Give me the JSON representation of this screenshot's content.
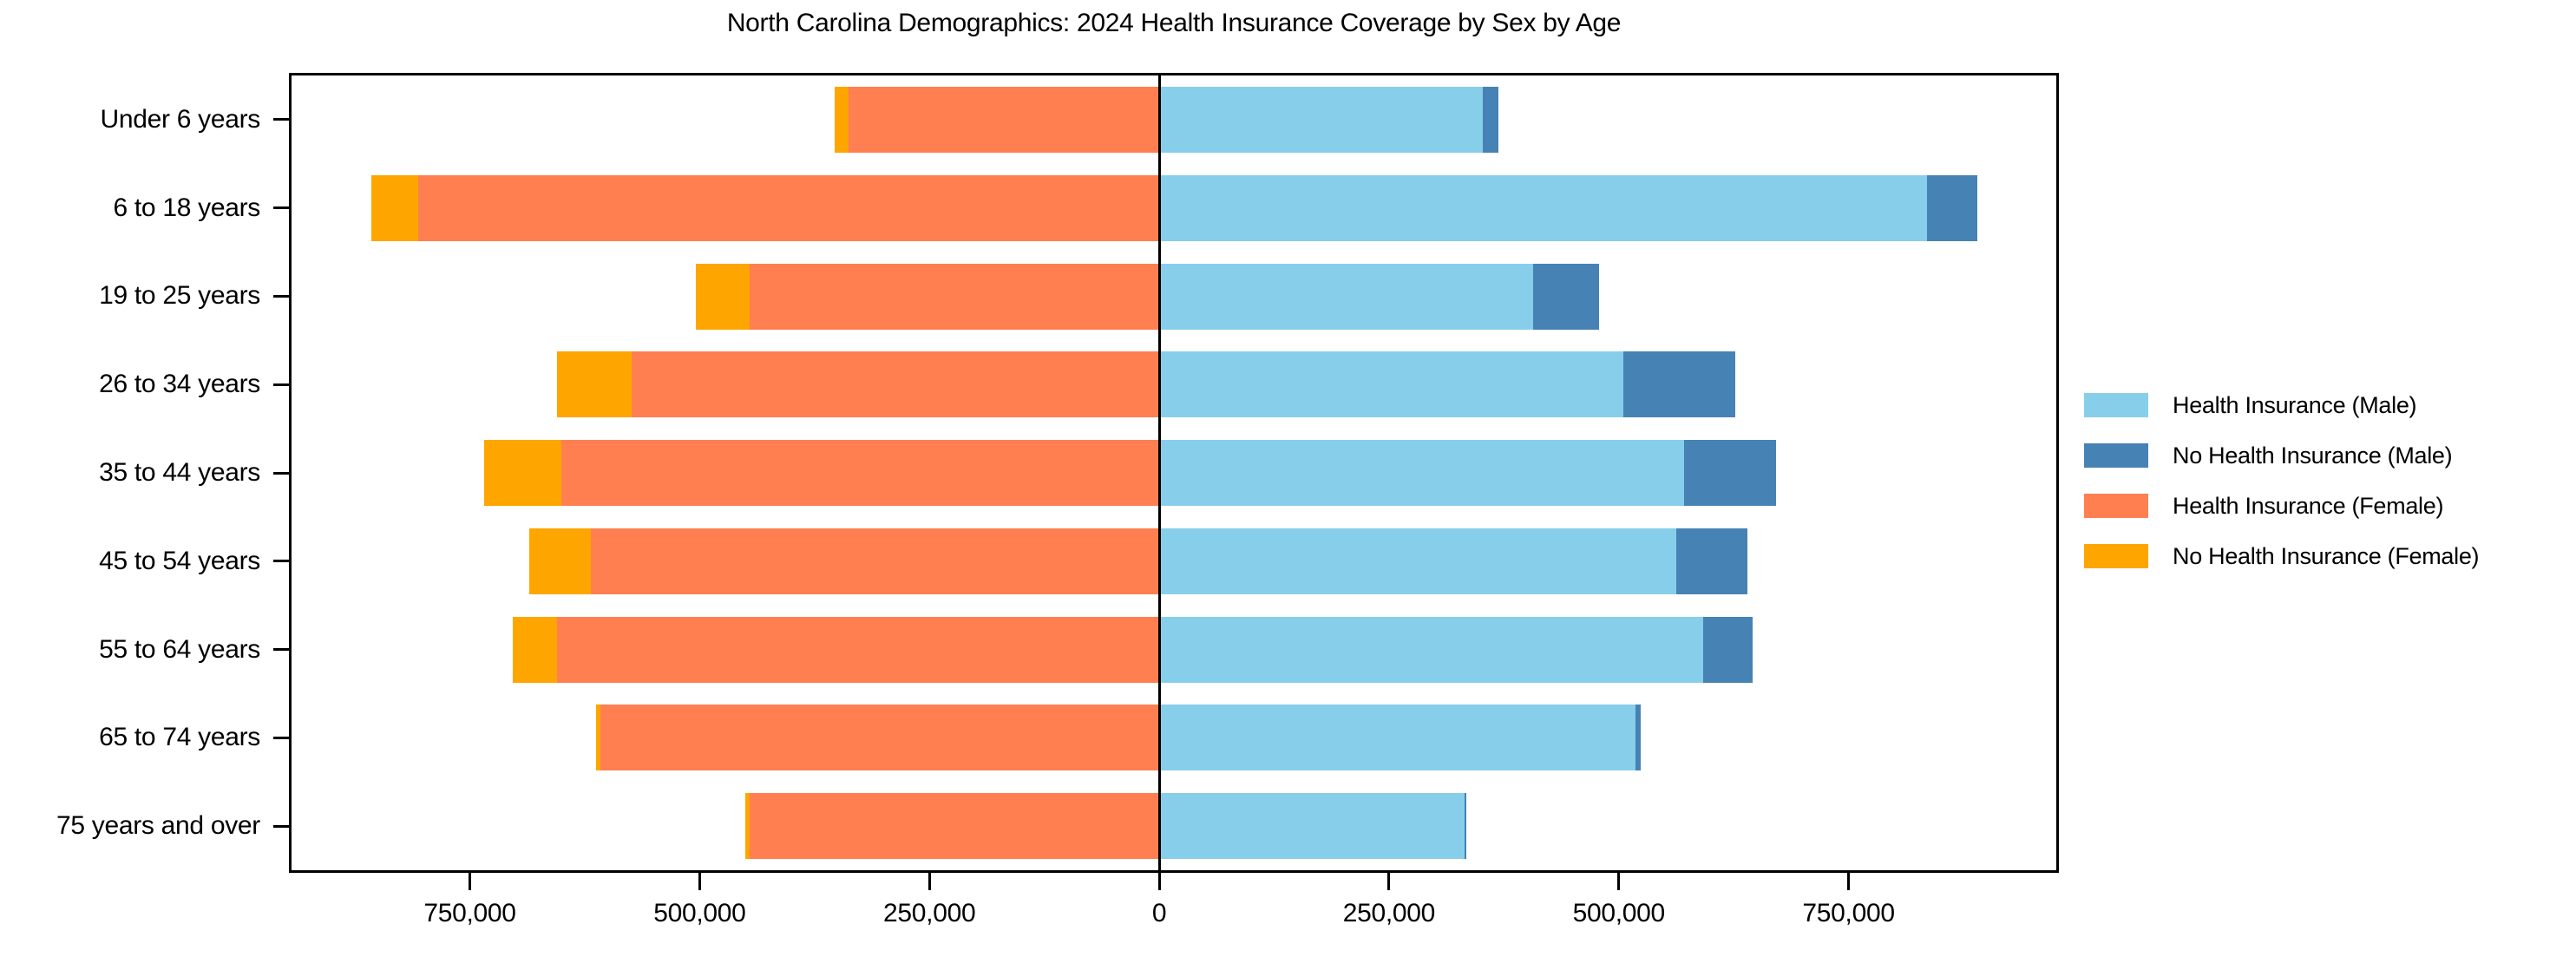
{
  "title": "North Carolina Demographics: 2024 Health Insurance Coverage by Sex by Age",
  "legend": {
    "position": "center right",
    "items": [
      {
        "label": "Health Insurance (Male)",
        "color": "#87CEEB"
      },
      {
        "label": "No Health Insurance (Male)",
        "color": "#4682B4"
      },
      {
        "label": "Health Insurance (Female)",
        "color": "#FF7F50"
      },
      {
        "label": "No Health Insurance (Female)",
        "color": "#FFA500"
      }
    ]
  },
  "chart_data": {
    "type": "bar",
    "variant": "population-pyramid",
    "orientation": "horizontal",
    "title": "North Carolina Demographics: 2024 Health Insurance Coverage by Sex by Age",
    "categories": [
      "Under 6 years",
      "6 to 18 years",
      "19 to 25 years",
      "26 to 34 years",
      "35 to 44 years",
      "45 to 54 years",
      "55 to 64 years",
      "65 to 74 years",
      "75 years and over"
    ],
    "series": [
      {
        "name": "Health Insurance (Male)",
        "color": "#87CEEB",
        "side": "right",
        "stack_order": 1,
        "values": [
          352000,
          835000,
          407000,
          505000,
          571000,
          563000,
          592000,
          518000,
          332000
        ]
      },
      {
        "name": "No Health Insurance (Male)",
        "color": "#4682B4",
        "side": "right",
        "stack_order": 2,
        "values": [
          17000,
          55000,
          72000,
          122000,
          100000,
          77000,
          54000,
          6000,
          2000
        ]
      },
      {
        "name": "Health Insurance (Female)",
        "color": "#FF7F50",
        "side": "left",
        "stack_order": 1,
        "values": [
          338000,
          806000,
          446000,
          574000,
          650000,
          618000,
          655000,
          608000,
          446000
        ]
      },
      {
        "name": "No Health Insurance (Female)",
        "color": "#FFA500",
        "side": "left",
        "stack_order": 2,
        "values": [
          15000,
          51000,
          58000,
          81000,
          84000,
          67000,
          48000,
          5000,
          4000
        ]
      }
    ],
    "x_axis": {
      "min": -944000,
      "max": 976000,
      "tick_values": [
        -750000,
        -500000,
        -250000,
        0,
        250000,
        500000,
        750000
      ],
      "tick_labels": [
        "750,000",
        "500,000",
        "250,000",
        "0",
        "250,000",
        "500,000",
        "750,000"
      ]
    },
    "grid": false,
    "legend_position": "center right",
    "colors": {
      "background": "#ffffff",
      "axis": "#000000",
      "text": "#000000"
    }
  }
}
